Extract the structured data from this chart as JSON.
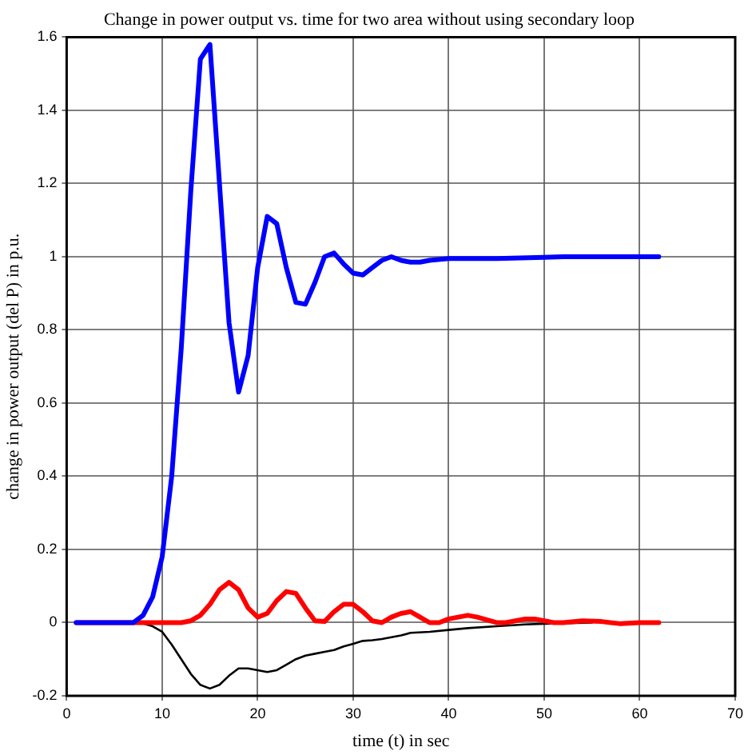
{
  "chart_data": {
    "type": "line",
    "title": "Change in power output vs. time for two area without using secondary loop",
    "xlabel": "time (t) in sec",
    "ylabel": "change in power output (del P) in p.u.",
    "xlim": [
      0,
      70
    ],
    "xticks": [
      0,
      10,
      20,
      30,
      40,
      50,
      60,
      70
    ],
    "ylim": [
      -0.2,
      1.6
    ],
    "yticks": [
      -0.2,
      0,
      0.2,
      0.4,
      0.6,
      0.8,
      1,
      1.2,
      1.4,
      1.6
    ],
    "grid": true,
    "legend": false,
    "marker": "none",
    "line_style": "solid",
    "series": [
      {
        "color": "#0000ff",
        "x": [
          1,
          7,
          8,
          9,
          10,
          11,
          12,
          13,
          14,
          15,
          16,
          17,
          18,
          19,
          20,
          21,
          22,
          23,
          24,
          25,
          26,
          27,
          28,
          29,
          30,
          31,
          32,
          33,
          34,
          35,
          36,
          37,
          38,
          40,
          45,
          50,
          52,
          62
        ],
        "values": [
          0,
          0,
          0.02,
          0.07,
          0.18,
          0.4,
          0.75,
          1.18,
          1.54,
          1.58,
          1.2,
          0.82,
          0.63,
          0.73,
          0.97,
          1.11,
          1.09,
          0.97,
          0.875,
          0.87,
          0.93,
          1.0,
          1.01,
          0.98,
          0.955,
          0.95,
          0.97,
          0.99,
          1.0,
          0.99,
          0.985,
          0.985,
          0.99,
          0.995,
          0.995,
          0.998,
          1.0,
          1.0
        ]
      },
      {
        "color": "#ff0000",
        "x": [
          1,
          12,
          13,
          14,
          15,
          16,
          17,
          18,
          19,
          20,
          21,
          22,
          23,
          24,
          25,
          26,
          27,
          28,
          29,
          30,
          31,
          32,
          33,
          34,
          35,
          36,
          37,
          38,
          39,
          40,
          42,
          43,
          45,
          46,
          48,
          49,
          51,
          52,
          54,
          56,
          58,
          60,
          62
        ],
        "values": [
          0,
          0,
          0.005,
          0.02,
          0.05,
          0.09,
          0.11,
          0.09,
          0.04,
          0.015,
          0.025,
          0.06,
          0.085,
          0.08,
          0.04,
          0.005,
          0.003,
          0.03,
          0.05,
          0.05,
          0.03,
          0.005,
          0,
          0.015,
          0.025,
          0.03,
          0.015,
          0,
          0,
          0.01,
          0.02,
          0.015,
          0,
          0,
          0.01,
          0.01,
          0,
          0,
          0.005,
          0.003,
          -0.003,
          0,
          0
        ]
      },
      {
        "color": "#000000",
        "x": [
          1,
          7,
          8,
          9,
          10,
          11,
          12,
          13,
          14,
          15,
          16,
          17,
          18,
          19,
          20,
          21,
          22,
          23,
          24,
          25,
          26,
          27,
          28,
          29,
          30,
          31,
          32,
          33,
          34,
          35,
          36,
          38,
          40,
          42,
          45,
          48,
          50,
          55
        ],
        "values": [
          0,
          0,
          -0.002,
          -0.01,
          -0.025,
          -0.06,
          -0.1,
          -0.14,
          -0.17,
          -0.18,
          -0.17,
          -0.145,
          -0.125,
          -0.125,
          -0.13,
          -0.135,
          -0.13,
          -0.115,
          -0.1,
          -0.09,
          -0.085,
          -0.08,
          -0.075,
          -0.065,
          -0.058,
          -0.05,
          -0.048,
          -0.045,
          -0.04,
          -0.035,
          -0.028,
          -0.025,
          -0.02,
          -0.015,
          -0.01,
          -0.005,
          -0.003,
          0
        ]
      }
    ]
  }
}
